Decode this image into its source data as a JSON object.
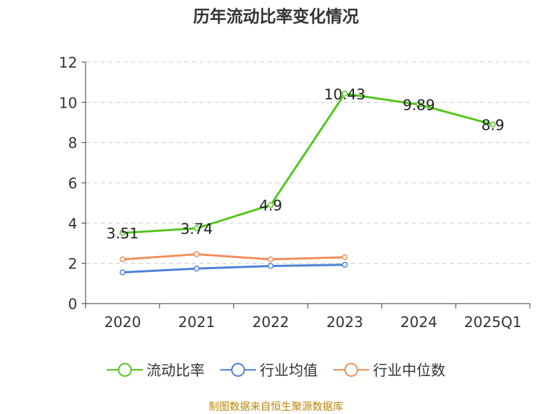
{
  "chart_data": {
    "type": "line",
    "title": "历年流动比率变化情况",
    "categories": [
      "2020",
      "2021",
      "2022",
      "2023",
      "2024",
      "2025Q1"
    ],
    "ylim": [
      0,
      12
    ],
    "yticks": [
      "0",
      "2",
      "4",
      "6",
      "8",
      "10",
      "12"
    ],
    "grid": true,
    "legend_position": "bottom",
    "series": [
      {
        "name": "流动比率",
        "color": "#52c41a",
        "values": [
          3.51,
          3.74,
          4.9,
          10.43,
          9.89,
          8.9
        ],
        "labels": [
          "3.51",
          "3.74",
          "4.9",
          "10.43",
          "9.89",
          "8.9"
        ]
      },
      {
        "name": "行业均值",
        "color": "#4a7fd9",
        "values": [
          1.55,
          1.74,
          1.87,
          1.93,
          null,
          null
        ]
      },
      {
        "name": "行业中位数",
        "color": "#f28c5b",
        "values": [
          2.2,
          2.45,
          2.2,
          2.3,
          null,
          null
        ]
      }
    ]
  },
  "source_note": "制图数据来自恒生聚源数据库"
}
